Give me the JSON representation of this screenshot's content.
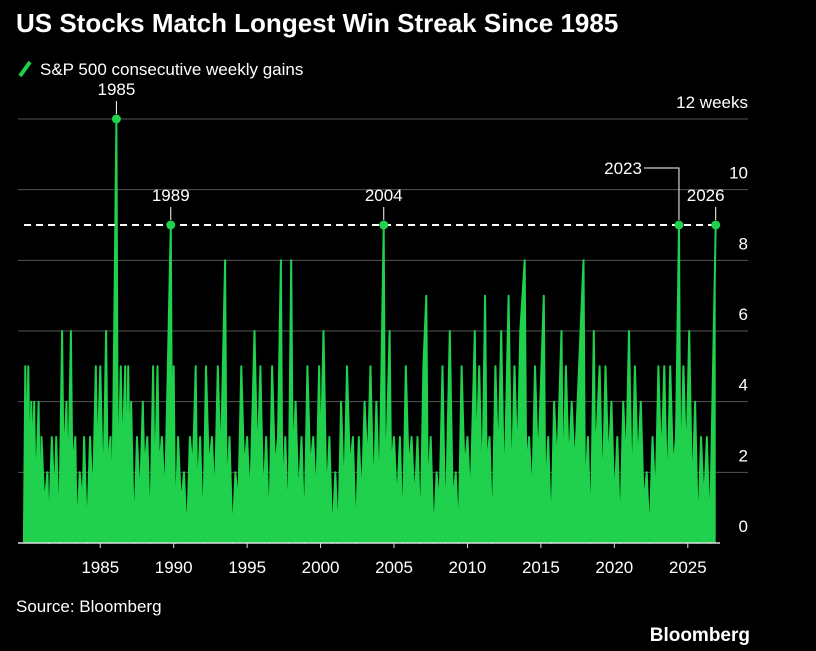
{
  "chart_data": {
    "type": "line",
    "title": "US Stocks Match Longest Win Streak Since 1985",
    "source": "Source: Bloomberg",
    "brand": "Bloomberg",
    "series": [
      {
        "name": "S&P 500 consecutive weekly gains",
        "color": "#1fd14c",
        "x": [
          1979.8,
          1979.9,
          1980.0,
          1980.1,
          1980.2,
          1980.3,
          1980.4,
          1980.5,
          1980.6,
          1980.8,
          1980.9,
          1981.0,
          1981.2,
          1981.4,
          1981.5,
          1981.7,
          1981.9,
          1982.0,
          1982.2,
          1982.4,
          1982.5,
          1982.7,
          1982.8,
          1983.0,
          1983.1,
          1983.3,
          1983.4,
          1983.6,
          1983.8,
          1983.9,
          1984.1,
          1984.3,
          1984.5,
          1984.7,
          1984.8,
          1985.0,
          1985.2,
          1985.4,
          1985.5,
          1985.7,
          1985.8,
          1986.1,
          1986.2,
          1986.4,
          1986.5,
          1986.7,
          1986.8,
          1986.9,
          1987.0,
          1987.1,
          1987.3,
          1987.5,
          1987.7,
          1987.9,
          1988.0,
          1988.2,
          1988.4,
          1988.6,
          1988.7,
          1988.9,
          1989.0,
          1989.2,
          1989.4,
          1989.8,
          1989.9,
          1990.0,
          1990.1,
          1990.3,
          1990.5,
          1990.7,
          1990.9,
          1991.1,
          1991.3,
          1991.5,
          1991.6,
          1991.8,
          1992.0,
          1992.2,
          1992.4,
          1992.6,
          1992.8,
          1993.0,
          1993.2,
          1993.5,
          1993.6,
          1993.8,
          1994.0,
          1994.2,
          1994.4,
          1994.6,
          1994.8,
          1995.0,
          1995.2,
          1995.5,
          1995.7,
          1995.9,
          1996.1,
          1996.3,
          1996.5,
          1996.7,
          1996.9,
          1997.1,
          1997.3,
          1997.4,
          1997.6,
          1997.8,
          1998.0,
          1998.1,
          1998.3,
          1998.5,
          1998.7,
          1998.9,
          1999.1,
          1999.3,
          1999.5,
          1999.7,
          1999.9,
          2000.0,
          2000.2,
          2000.4,
          2000.6,
          2000.8,
          2001.0,
          2001.2,
          2001.4,
          2001.6,
          2001.8,
          2002.0,
          2002.2,
          2002.4,
          2002.6,
          2002.8,
          2003.0,
          2003.2,
          2003.4,
          2003.6,
          2003.8,
          2004.0,
          2004.3,
          2004.4,
          2004.7,
          2004.8,
          2005.0,
          2005.2,
          2005.4,
          2005.6,
          2005.8,
          2006.0,
          2006.2,
          2006.4,
          2006.6,
          2006.8,
          2007.0,
          2007.2,
          2007.3,
          2007.5,
          2007.7,
          2007.9,
          2008.1,
          2008.3,
          2008.5,
          2008.8,
          2009.0,
          2009.2,
          2009.4,
          2009.6,
          2009.8,
          2010.0,
          2010.2,
          2010.5,
          2010.6,
          2010.8,
          2011.0,
          2011.2,
          2011.3,
          2011.5,
          2011.7,
          2011.9,
          2012.1,
          2012.3,
          2012.5,
          2012.7,
          2012.8,
          2013.0,
          2013.2,
          2013.4,
          2013.6,
          2013.9,
          2014.0,
          2014.2,
          2014.4,
          2014.6,
          2014.8,
          2015.2,
          2015.3,
          2015.5,
          2015.7,
          2015.9,
          2016.1,
          2016.4,
          2016.5,
          2016.7,
          2016.9,
          2017.1,
          2017.3,
          2017.6,
          2017.9,
          2018.0,
          2018.2,
          2018.4,
          2018.6,
          2018.7,
          2019.0,
          2019.2,
          2019.4,
          2019.6,
          2019.8,
          2020.0,
          2020.2,
          2020.4,
          2020.6,
          2020.8,
          2021.0,
          2021.2,
          2021.4,
          2021.6,
          2021.8,
          2022.0,
          2022.2,
          2022.4,
          2022.6,
          2022.8,
          2023.0,
          2023.2,
          2023.4,
          2023.6,
          2023.8,
          2024.0,
          2024.2,
          2024.4,
          2024.5,
          2024.7,
          2024.9,
          2025.1,
          2025.3,
          2025.5,
          2025.7,
          2025.9,
          2026.1,
          2026.3,
          2026.5,
          2026.9
        ],
        "values": [
          0,
          5,
          2,
          5,
          1,
          4,
          2,
          4,
          1,
          4,
          0,
          3,
          1,
          2,
          0,
          3,
          1,
          3,
          0,
          6,
          2,
          4,
          1,
          6,
          2,
          3,
          0,
          2,
          1,
          3,
          0,
          3,
          1,
          5,
          2,
          5,
          1,
          6,
          2,
          3,
          0,
          12,
          1,
          5,
          2,
          5,
          1,
          5,
          2,
          4,
          0,
          3,
          1,
          4,
          2,
          3,
          0,
          5,
          1,
          5,
          2,
          3,
          1,
          9,
          1,
          5,
          0,
          3,
          1,
          2,
          0,
          3,
          2,
          5,
          1,
          3,
          0,
          5,
          2,
          3,
          1,
          5,
          2,
          8,
          1,
          3,
          0,
          2,
          1,
          5,
          2,
          3,
          1,
          6,
          2,
          5,
          1,
          3,
          0,
          5,
          2,
          3,
          8,
          1,
          3,
          0,
          8,
          2,
          4,
          1,
          3,
          0,
          5,
          2,
          3,
          1,
          5,
          2,
          6,
          1,
          3,
          0,
          2,
          0,
          4,
          1,
          5,
          2,
          3,
          0,
          3,
          1,
          4,
          2,
          5,
          1,
          4,
          1,
          9,
          1,
          6,
          2,
          3,
          1,
          3,
          0,
          5,
          2,
          3,
          1,
          3,
          0,
          5,
          7,
          1,
          3,
          0,
          2,
          1,
          5,
          0,
          6,
          1,
          2,
          0,
          5,
          2,
          3,
          1,
          6,
          2,
          5,
          1,
          7,
          2,
          3,
          0,
          5,
          2,
          6,
          1,
          5,
          7,
          1,
          5,
          2,
          6,
          8,
          2,
          3,
          1,
          5,
          2,
          7,
          1,
          3,
          0,
          4,
          2,
          6,
          1,
          5,
          2,
          4,
          2,
          5,
          8,
          1,
          3,
          0,
          6,
          2,
          5,
          1,
          5,
          2,
          4,
          1,
          3,
          0,
          4,
          2,
          6,
          1,
          5,
          2,
          4,
          1,
          2,
          0,
          3,
          1,
          5,
          2,
          5,
          1,
          5,
          2,
          3,
          9,
          1,
          5,
          2,
          6,
          1,
          4,
          0,
          3,
          1,
          3,
          0,
          9
        ]
      }
    ],
    "reference_line": 9,
    "annotations": [
      {
        "text": "1985",
        "x": 1986.1,
        "y": 12
      },
      {
        "text": "1989",
        "x": 1989.8,
        "y": 9
      },
      {
        "text": "2004",
        "x": 2004.3,
        "y": 9
      },
      {
        "text": "2023",
        "x": 2024.4,
        "y": 9
      },
      {
        "text": "2026",
        "x": 2026.9,
        "y": 9
      }
    ],
    "xlim": [
      1979.4,
      2029.1
    ],
    "xticks": [
      1985,
      1990,
      1995,
      2000,
      2005,
      2010,
      2015,
      2020,
      2025
    ],
    "ylim": [
      0,
      12
    ],
    "yticks": [
      0,
      2,
      4,
      6,
      8,
      10,
      {
        "value": 12,
        "label": "12 weeks"
      }
    ],
    "grid": true
  }
}
